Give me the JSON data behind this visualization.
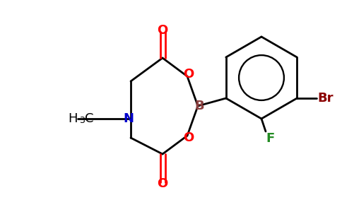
{
  "background_color": "#ffffff",
  "bond_color": "#000000",
  "line_width": 2.0,
  "figsize": [
    4.84,
    3.0
  ],
  "dpi": 100,
  "colors": {
    "O": "#ff0000",
    "N": "#0000cc",
    "B": "#8B4040",
    "Br": "#8B0000",
    "F": "#228B22",
    "C": "#000000"
  }
}
